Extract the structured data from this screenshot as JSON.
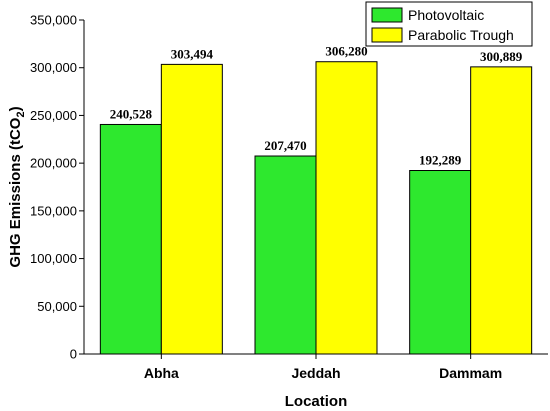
{
  "chart_data": {
    "type": "bar",
    "categories": [
      "Abha",
      "Jeddah",
      "Dammam"
    ],
    "series": [
      {
        "name": "Photovoltaic",
        "values": [
          240528,
          207470,
          192289
        ],
        "labels": [
          "240,528",
          "207,470",
          "192,289"
        ],
        "color": "#2ee82e"
      },
      {
        "name": "Parabolic Trough",
        "values": [
          303494,
          306280,
          300889
        ],
        "labels": [
          "303,494",
          "306,280",
          "300,889"
        ],
        "color": "#ffff00"
      }
    ],
    "xlabel": "Location",
    "ylabel": "GHG Emissions (tCO2)",
    "ylim": [
      0,
      350000
    ],
    "yticks": [
      0,
      50000,
      100000,
      150000,
      200000,
      250000,
      300000,
      350000
    ],
    "ytick_labels": [
      "0",
      "50,000",
      "100,000",
      "150,000",
      "200,000",
      "250,000",
      "300,000",
      "350,000"
    ],
    "grid": false,
    "legend_position": "top-right"
  }
}
